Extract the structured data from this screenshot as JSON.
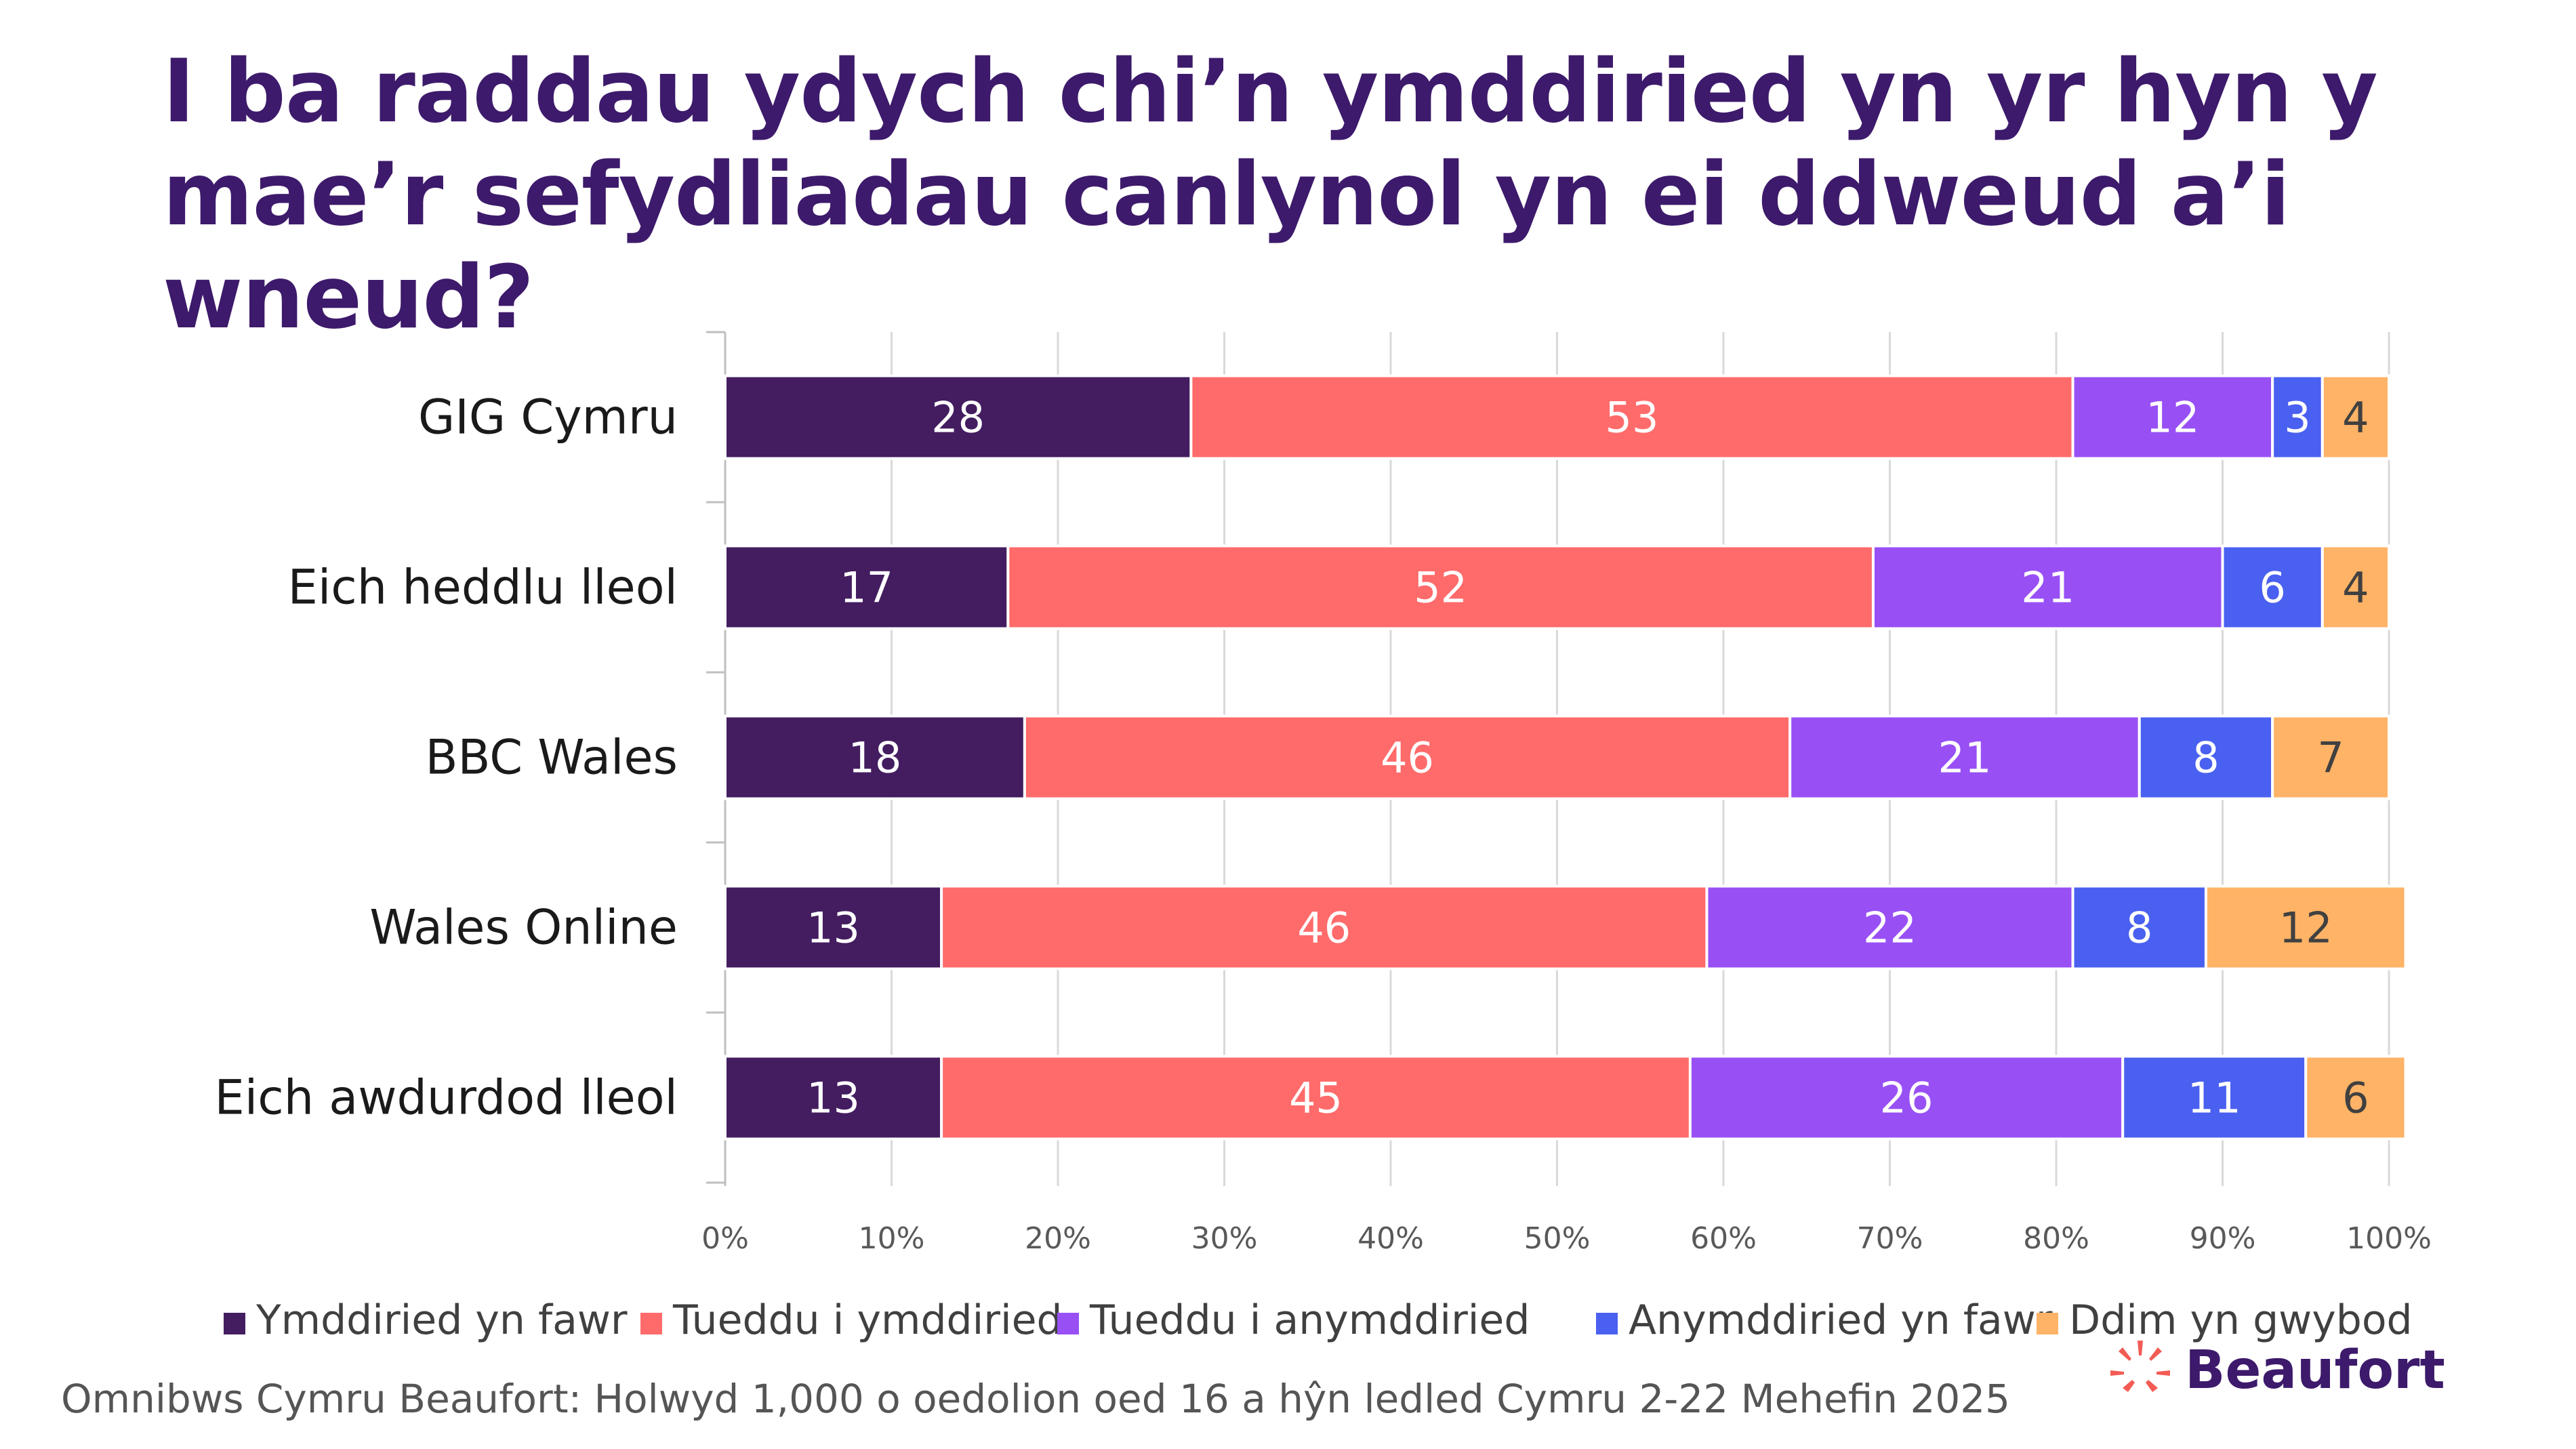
{
  "title": "I ba raddau ydych chi’n ymddiried yn yr hyn y mae’r sefydliadau canlynol yn ei ddweud a’i wneud?",
  "footnote": "Omnibws Cymru Beaufort: Holwyd 1,000 o oedolion oed 16 a hŷn ledled Cymru 2-22 Mehefin 2025",
  "logo": {
    "text": "Beaufort",
    "icon": "beaufort-burst-logo",
    "color": "#f25c54"
  },
  "chart_data": {
    "type": "bar",
    "orientation": "horizontal",
    "stacked": true,
    "title": "I ba raddau ydych chi’n ymddiried yn yr hyn y mae’r sefydliadau canlynol yn ei ddweud a’i wneud?",
    "xlabel": "",
    "ylabel": "",
    "xlim": [
      0,
      100
    ],
    "x_ticks": [
      "0%",
      "10%",
      "20%",
      "30%",
      "40%",
      "50%",
      "60%",
      "70%",
      "80%",
      "90%",
      "100%"
    ],
    "grid": true,
    "legend_position": "bottom",
    "categories": [
      "GIG Cymru",
      "Eich heddlu lleol",
      "BBC Wales",
      "Wales Online",
      "Eich awdurdod lleol"
    ],
    "series": [
      {
        "name": "Ymddiried yn fawr",
        "color": "#431d60",
        "values": [
          28,
          17,
          18,
          13,
          13
        ]
      },
      {
        "name": "Tueddu i ymddiried",
        "color": "#ff6b6b",
        "values": [
          53,
          52,
          46,
          46,
          45
        ]
      },
      {
        "name": "Tueddu i anymddiried",
        "color": "#9850f5",
        "values": [
          12,
          21,
          21,
          22,
          26
        ]
      },
      {
        "name": "Anymddiried yn fawr",
        "color": "#4a60f0",
        "values": [
          3,
          6,
          8,
          8,
          11
        ]
      },
      {
        "name": "Ddim yn gwybod",
        "color": "#ffb366",
        "values": [
          4,
          4,
          7,
          12,
          6
        ]
      }
    ]
  }
}
